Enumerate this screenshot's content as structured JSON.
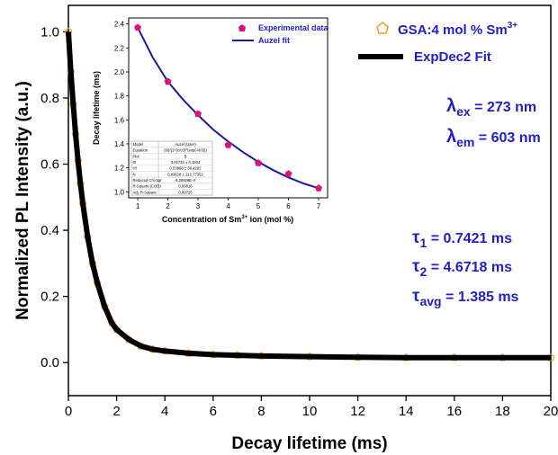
{
  "colors": {
    "experimental": "#f39c12",
    "fit": "#000000",
    "annotation": "#1f1fc4",
    "inset_points": "#e0107a",
    "inset_fit": "#1a1aa0"
  },
  "chart_data": [
    {
      "type": "line",
      "xlabel": "Decay lifetime (ms)",
      "ylabel": "Normalized PL Intensity (a.u.)",
      "xlim": [
        0,
        20
      ],
      "ylim": [
        -0.1,
        1.08
      ],
      "xticks": [
        "0",
        "2",
        "4",
        "6",
        "8",
        "10",
        "12",
        "14",
        "16",
        "18",
        "20"
      ],
      "yticks": [
        "0.0",
        "0.2",
        "0.4",
        "0.6",
        "0.8",
        "1.0"
      ],
      "grid": false,
      "legend_position": "top-right",
      "series": [
        {
          "name": "GSA:4 mol % Sm",
          "name_sup": "3+",
          "style": "scatter-hollow-pentagon",
          "color": "#f39c12",
          "x": [
            0,
            0.1,
            0.2,
            0.3,
            0.4,
            0.5,
            0.6,
            0.8,
            1.0,
            1.2,
            1.5,
            1.8,
            2.0,
            2.5,
            3.0,
            3.5,
            4.0,
            5.0,
            6.0,
            7.0,
            8.0,
            10.0,
            12.0,
            14.0,
            16.0,
            18.0,
            20.0
          ],
          "y": [
            1.0,
            0.88,
            0.78,
            0.69,
            0.61,
            0.54,
            0.48,
            0.38,
            0.3,
            0.24,
            0.17,
            0.12,
            0.1,
            0.07,
            0.05,
            0.04,
            0.035,
            0.028,
            0.024,
            0.022,
            0.02,
            0.018,
            0.016,
            0.015,
            0.015,
            0.015,
            0.015
          ]
        },
        {
          "name": "ExpDec2 Fit",
          "style": "line",
          "color": "#000000",
          "x": [
            0,
            0.1,
            0.2,
            0.3,
            0.4,
            0.5,
            0.6,
            0.8,
            1.0,
            1.2,
            1.5,
            1.8,
            2.0,
            2.5,
            3.0,
            3.5,
            4.0,
            5.0,
            6.0,
            7.0,
            8.0,
            10.0,
            12.0,
            14.0,
            16.0,
            18.0,
            20.0
          ],
          "y": [
            1.0,
            0.88,
            0.78,
            0.69,
            0.61,
            0.54,
            0.48,
            0.38,
            0.3,
            0.24,
            0.17,
            0.12,
            0.1,
            0.07,
            0.05,
            0.04,
            0.035,
            0.028,
            0.024,
            0.022,
            0.02,
            0.018,
            0.016,
            0.015,
            0.015,
            0.015,
            0.015
          ]
        }
      ],
      "annotations": {
        "lambda_ex": {
          "symbol": "λ",
          "sub": "ex",
          "text": " = 273 nm"
        },
        "lambda_em": {
          "symbol": "λ",
          "sub": "em",
          "text": " = 603 nm"
        },
        "tau1": {
          "symbol": "τ",
          "sub": "1",
          "text": " = 0.7421 ms"
        },
        "tau2": {
          "symbol": "τ",
          "sub": "2",
          "text": " = 4.6718 ms"
        },
        "tau_avg": {
          "symbol": "τ",
          "sub": "avg",
          "text": " = 1.385 ms"
        }
      }
    },
    {
      "type": "scatter",
      "xlabel_main": "Concentration of Sm",
      "xlabel_sup": "3+",
      "xlabel_tail": " ion (mol %)",
      "ylabel": "Decay lifetime (ms)",
      "xlim": [
        0.7,
        7.3
      ],
      "ylim": [
        0.95,
        2.45
      ],
      "xticks": [
        "1",
        "2",
        "3",
        "4",
        "5",
        "6",
        "7"
      ],
      "yticks": [
        "1.0",
        "1.2",
        "1.4",
        "1.6",
        "1.8",
        "2.0",
        "2.2",
        "2.4"
      ],
      "legend_position": "top-right",
      "series": [
        {
          "name": "Experimental data",
          "style": "filled-pentagon",
          "color": "#e0107a",
          "x": [
            1,
            2,
            3,
            4,
            5,
            6,
            7
          ],
          "y": [
            2.37,
            1.92,
            1.65,
            1.39,
            1.24,
            1.15,
            1.03
          ]
        },
        {
          "name": "Auzel fit",
          "style": "line",
          "color": "#1a1aa0",
          "x": [
            1,
            1.5,
            2,
            2.5,
            3,
            3.5,
            4,
            4.5,
            5,
            5.5,
            6,
            6.5,
            7
          ],
          "y": [
            2.37,
            2.12,
            1.92,
            1.77,
            1.64,
            1.52,
            1.42,
            1.33,
            1.25,
            1.18,
            1.12,
            1.07,
            1.03
          ]
        }
      ],
      "stats_table": [
        [
          "Model",
          "Auzel (User)"
        ],
        [
          "Equation",
          "(t0)/(1+(c/c0)^(exp(-N/3)))"
        ],
        [
          "Plot",
          "B"
        ],
        [
          "t0",
          "3.02732 ± 0.1503"
        ],
        [
          "c0",
          "0.53968 ± 38.4282"
        ],
        [
          "N",
          "5.83618 ± 212.77352"
        ],
        [
          "Reduced Chi-Sqr",
          "6.28928E-4"
        ],
        [
          "R-Square (COD)",
          "0.99816"
        ],
        [
          "Adj. R-Square",
          "0.99725"
        ]
      ]
    }
  ]
}
